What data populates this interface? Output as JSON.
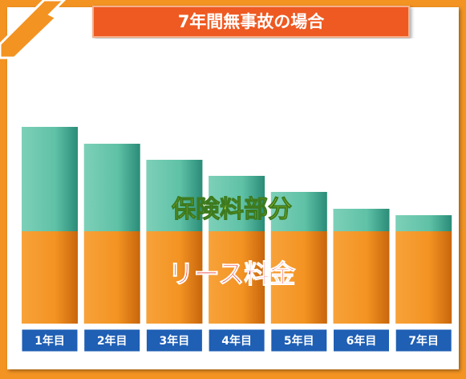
{
  "chart_data": {
    "type": "stacked-bar",
    "title": "7年間無事故の場合",
    "categories": [
      "1年目",
      "2年目",
      "3年目",
      "4年目",
      "5年目",
      "6年目",
      "7年目"
    ],
    "series": [
      {
        "name": "リース料金",
        "color": "#f39322",
        "values": [
          115,
          115,
          115,
          115,
          115,
          115,
          115
        ]
      },
      {
        "name": "保険料部分",
        "color": "#5fc1a6",
        "values": [
          130,
          109,
          89,
          69,
          49,
          28,
          20
        ]
      }
    ],
    "ylim": [
      0,
      250
    ]
  }
}
